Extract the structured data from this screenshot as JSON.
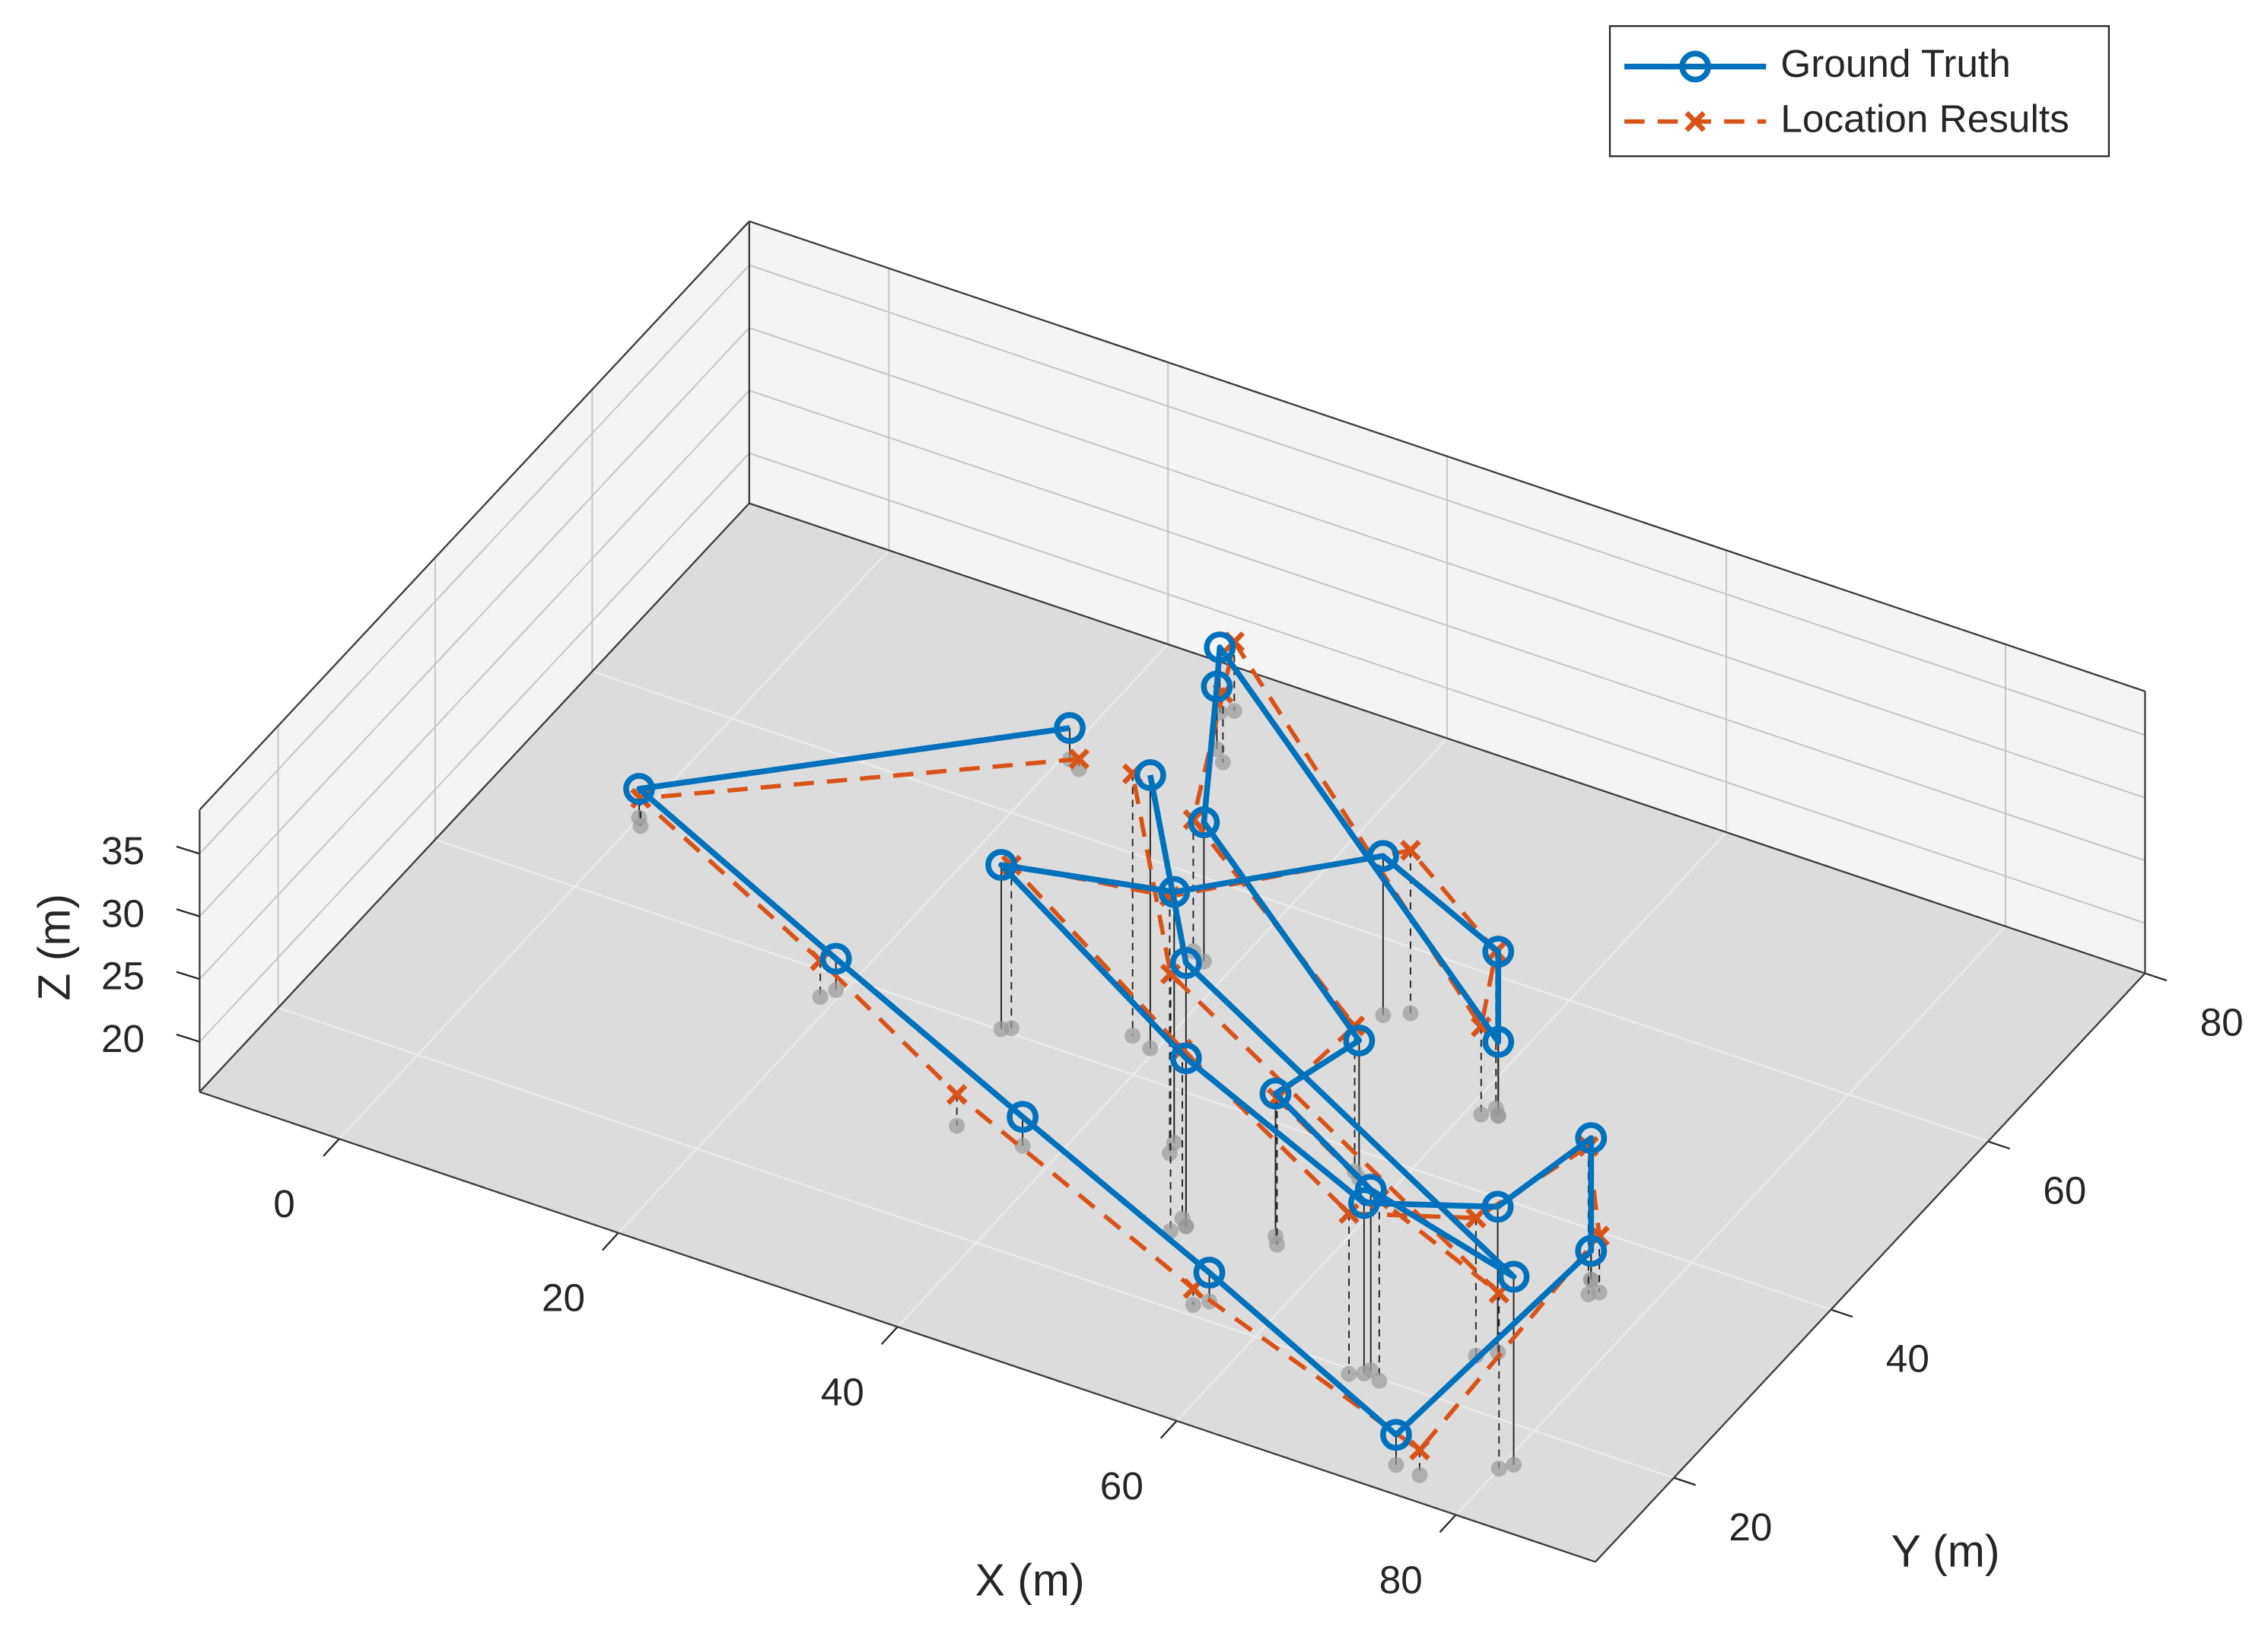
{
  "chart_data": {
    "type": "line3d",
    "xlabel": "X (m)",
    "ylabel": "Y (m)",
    "zlabel": "Z (m)",
    "xlim": [
      -10,
      90
    ],
    "ylim": [
      10,
      80
    ],
    "zlim": [
      16,
      38.5
    ],
    "xticks": [
      0,
      20,
      40,
      60,
      80
    ],
    "yticks": [
      20,
      40,
      60,
      80
    ],
    "zticks": [
      20,
      25,
      30,
      35
    ],
    "grid": true,
    "legend": "northeast",
    "series": [
      {
        "name": "Ground Truth",
        "color": "#0072BD",
        "marker": "o",
        "line": "solid",
        "x": [
          20.5,
          0,
          19.5,
          37.6,
          55.7,
          74.2,
          75.4,
          75.4,
          74,
          67.8,
          50.6,
          30.5,
          45.7,
          50.6,
          62,
          62,
          26.3,
          28,
          38.1,
          57.6,
          56,
          68,
          80.6,
          50.6,
          39.6
        ],
        "y": [
          66.6,
          48.2,
          38.6,
          30.2,
          21.8,
          12.7,
          35.4,
          35.4,
          26,
          20,
          27.9,
          40.1,
          35.1,
          53,
          47.4,
          47.4,
          75.4,
          72,
          52.4,
          37.5,
          29.7,
          20.5,
          16.3,
          27.9,
          42.9
        ],
        "z": [
          18.5,
          18.3,
          18.5,
          18.3,
          18.3,
          18.4,
          18.3,
          27.3,
          27.6,
          29.6,
          29.4,
          29.1,
          36,
          28.7,
          29.1,
          21.9,
          21.2,
          21,
          27.1,
          27,
          27.4,
          30.4,
          31,
          37,
          37.8
        ]
      },
      {
        "name": "Location Results",
        "color": "#D95319",
        "marker": "x",
        "line": "dashed",
        "x": [
          21.5,
          0.5,
          19,
          33,
          55,
          76,
          76.5,
          76,
          73,
          67,
          50,
          31,
          46,
          52,
          61.5,
          61,
          27,
          29,
          37,
          57,
          56.5,
          69,
          80,
          50,
          38
        ],
        "y": [
          66,
          47.5,
          37.5,
          30,
          21,
          12.5,
          34.5,
          34,
          25,
          19.5,
          28.5,
          40.5,
          34,
          54,
          48,
          47,
          76,
          71,
          53,
          38,
          29,
          19.8,
          15.5,
          27,
          43.5
        ],
        "z": [
          16.8,
          18.2,
          18.9,
          18.5,
          17.3,
          18,
          20.5,
          27.8,
          27,
          28.8,
          29.5,
          29,
          36.5,
          29,
          28.5,
          23,
          21.5,
          21.5,
          26.5,
          27.6,
          27.7,
          30.5,
          30,
          36.5,
          36.9
        ]
      }
    ]
  }
}
